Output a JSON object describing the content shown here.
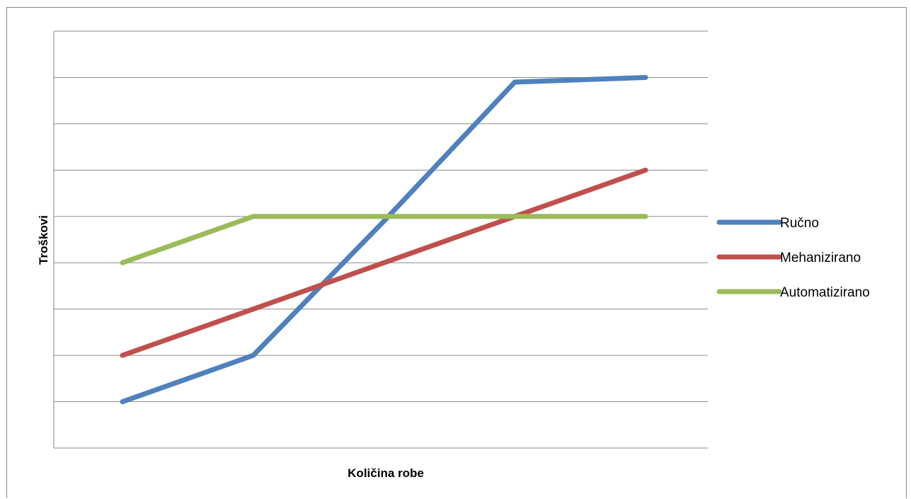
{
  "chart_data": {
    "type": "line",
    "title": "",
    "xlabel": "Količina robe",
    "ylabel": "Troškovi",
    "x": [
      1,
      2,
      3,
      4,
      5
    ],
    "ylim": [
      0,
      9
    ],
    "y_gridlines": [
      1,
      2,
      3,
      4,
      5,
      6,
      7,
      8,
      9
    ],
    "grid": true,
    "tick_labels_shown": false,
    "legend": "right",
    "series": [
      {
        "name": "Ručno",
        "color": "#4f81bd",
        "values": [
          1,
          2,
          4.9,
          7.9,
          8
        ]
      },
      {
        "name": "Mehanizirano",
        "color": "#c0504d",
        "values": [
          2,
          3,
          4,
          5,
          6
        ]
      },
      {
        "name": "Automatizirano",
        "color": "#9bbb59",
        "values": [
          4,
          5,
          5,
          5,
          5
        ]
      }
    ]
  }
}
